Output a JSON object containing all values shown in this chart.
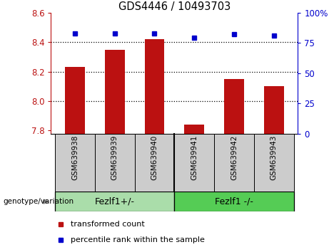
{
  "title": "GDS4446 / 10493703",
  "categories": [
    "GSM639938",
    "GSM639939",
    "GSM639940",
    "GSM639941",
    "GSM639942",
    "GSM639943"
  ],
  "bar_values": [
    8.23,
    8.35,
    8.42,
    7.84,
    8.15,
    8.1
  ],
  "percentile_values": [
    83,
    83,
    83,
    79,
    82,
    81
  ],
  "bar_color": "#bb1111",
  "dot_color": "#0000cc",
  "ylim_left": [
    7.78,
    8.6
  ],
  "ylim_right": [
    0,
    100
  ],
  "yticks_left": [
    7.8,
    8.0,
    8.2,
    8.4,
    8.6
  ],
  "yticks_right": [
    0,
    25,
    50,
    75,
    100
  ],
  "group1_label": "Fezlf1+/-",
  "group2_label": "Fezlf1 -/-",
  "group1_color": "#aaddaa",
  "group2_color": "#55cc55",
  "legend_red_label": "transformed count",
  "legend_blue_label": "percentile rank within the sample",
  "genotype_label": "genotype/variation",
  "bar_bottom": 7.78,
  "cell_color": "#cccccc",
  "grid_lines": [
    8.0,
    8.2,
    8.4
  ],
  "bar_width": 0.5
}
